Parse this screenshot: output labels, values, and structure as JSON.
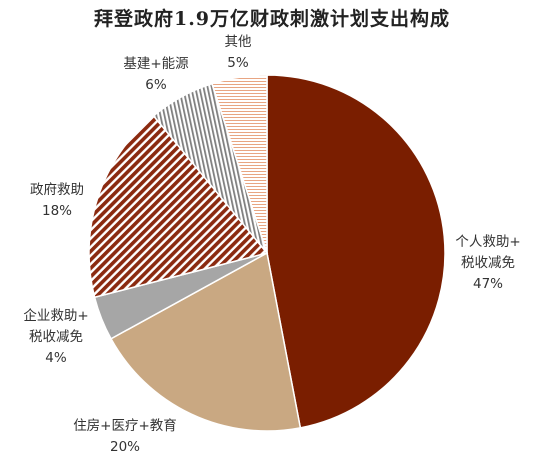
{
  "chart_data": {
    "type": "pie",
    "title": "拜登政府1.9万亿财政刺激计划支出构成",
    "slices": [
      {
        "label_lines": [
          "个人救助+",
          "税收减免"
        ],
        "value": 47,
        "value_text": "47%",
        "color": "#7a1e00",
        "pattern": "solid"
      },
      {
        "label_lines": [
          "住房+医疗+教育"
        ],
        "value": 20,
        "value_text": "20%",
        "color": "#c9a882",
        "pattern": "solid"
      },
      {
        "label_lines": [
          "企业救助+",
          "税收减免"
        ],
        "value": 4,
        "value_text": "4%",
        "color": "#a6a6a6",
        "pattern": "solid"
      },
      {
        "label_lines": [
          "政府救助"
        ],
        "value": 18,
        "value_text": "18%",
        "color": "#8b2a10",
        "pattern": "diagonal-hatch"
      },
      {
        "label_lines": [
          "基建+能源"
        ],
        "value": 6,
        "value_text": "6%",
        "color": "#7f7f7f",
        "pattern": "vertical-stripes"
      },
      {
        "label_lines": [
          "其他"
        ],
        "value": 5,
        "value_text": "5%",
        "color": "#e8a582",
        "pattern": "horizontal-stripes"
      }
    ],
    "start_angle_deg": 0,
    "direction": "clockwise",
    "legend": "none"
  }
}
